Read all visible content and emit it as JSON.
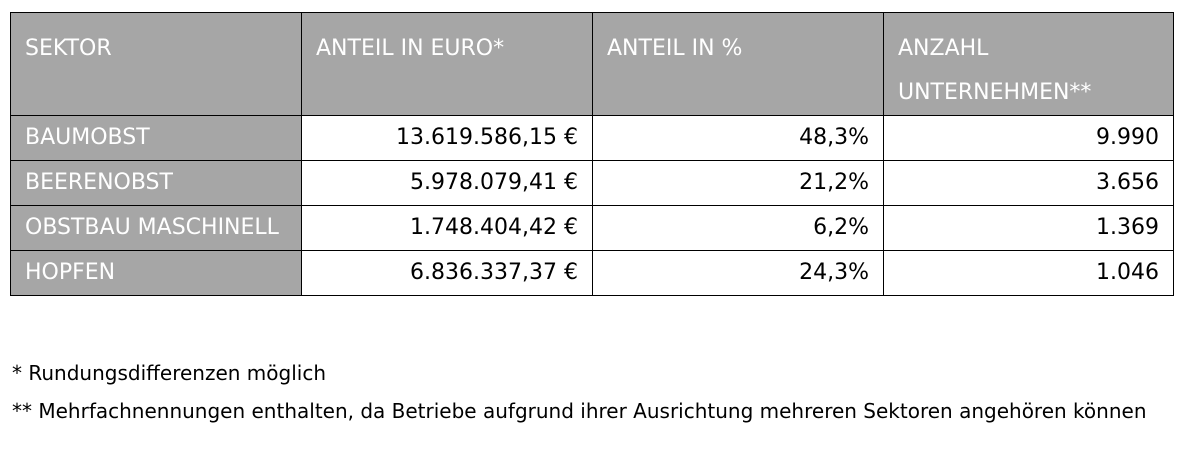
{
  "table": {
    "headers": [
      "SEKTOR",
      "ANTEIL IN EURO*",
      "ANTEIL IN %",
      "ANZAHL UNTERNEHMEN**"
    ],
    "rows": [
      {
        "sector": "BAUMOBST",
        "euro": "13.619.586,15 €",
        "percent": "48,3%",
        "companies": "9.990"
      },
      {
        "sector": "BEERENOBST",
        "euro": "5.978.079,41 €",
        "percent": "21,2%",
        "companies": "3.656"
      },
      {
        "sector": "OBSTBAU MASCHINELL",
        "euro": "1.748.404,42 €",
        "percent": "6,2%",
        "companies": "1.369"
      },
      {
        "sector": "HOPFEN",
        "euro": "6.836.337,37 €",
        "percent": "24,3%",
        "companies": "1.046"
      }
    ]
  },
  "footnotes": [
    "* Rundungsdifferenzen möglich",
    "** Mehrfachnennungen enthalten, da Betriebe aufgrund ihrer Ausrichtung mehreren Sektoren angehören können"
  ],
  "colors": {
    "header_bg": "#a6a6a6",
    "header_text": "#ffffff",
    "border": "#000000"
  }
}
